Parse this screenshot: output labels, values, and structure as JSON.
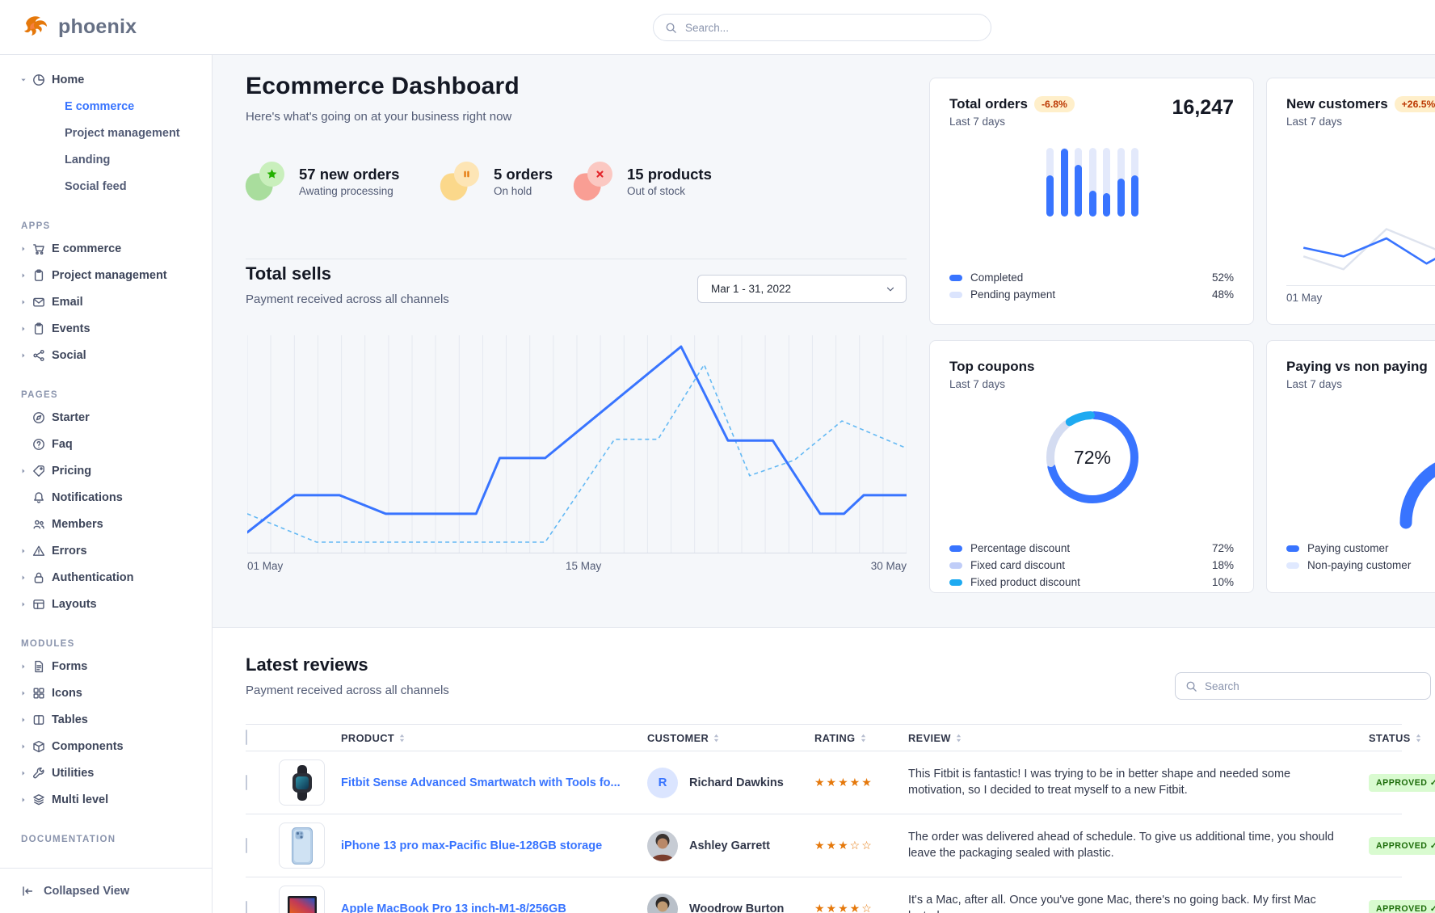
{
  "header": {
    "logo_text": "phoenix",
    "search_placeholder": "Search..."
  },
  "sidebar": {
    "home": {
      "label": "Home",
      "icon": "pie",
      "children": [
        {
          "label": "E commerce",
          "active": true
        },
        {
          "label": "Project management",
          "active": false
        },
        {
          "label": "Landing",
          "active": false
        },
        {
          "label": "Social feed",
          "active": false
        }
      ]
    },
    "groups": [
      {
        "label": "APPS",
        "items": [
          {
            "label": "E commerce",
            "icon": "cart",
            "caret": true
          },
          {
            "label": "Project management",
            "icon": "clipboard",
            "caret": true
          },
          {
            "label": "Email",
            "icon": "envelope",
            "caret": true
          },
          {
            "label": "Events",
            "icon": "clipboard",
            "caret": true
          },
          {
            "label": "Social",
            "icon": "share",
            "caret": true
          }
        ]
      },
      {
        "label": "PAGES",
        "items": [
          {
            "label": "Starter",
            "icon": "compass",
            "caret": false
          },
          {
            "label": "Faq",
            "icon": "question",
            "caret": false
          },
          {
            "label": "Pricing",
            "icon": "tag",
            "caret": true
          },
          {
            "label": "Notifications",
            "icon": "bell",
            "caret": false
          },
          {
            "label": "Members",
            "icon": "users",
            "caret": false
          },
          {
            "label": "Errors",
            "icon": "warning",
            "caret": true
          },
          {
            "label": "Authentication",
            "icon": "lock",
            "caret": true
          },
          {
            "label": "Layouts",
            "icon": "layout",
            "caret": true
          }
        ]
      },
      {
        "label": "MODULES",
        "items": [
          {
            "label": "Forms",
            "icon": "file",
            "caret": true
          },
          {
            "label": "Icons",
            "icon": "grid",
            "caret": true
          },
          {
            "label": "Tables",
            "icon": "tablecols",
            "caret": true
          },
          {
            "label": "Components",
            "icon": "box",
            "caret": true
          },
          {
            "label": "Utilities",
            "icon": "wrench",
            "caret": true
          },
          {
            "label": "Multi level",
            "icon": "layers",
            "caret": true
          }
        ]
      },
      {
        "label": "DOCUMENTATION",
        "items": []
      }
    ],
    "collapsed_view": "Collapsed View"
  },
  "hero": {
    "title": "Ecommerce Dashboard",
    "subtitle": "Here's what's going on at your business right now",
    "stats": [
      {
        "value": "57 new orders",
        "caption": "Awating processing",
        "icon": "star",
        "blob": "#a9dd9d",
        "circle": "#c9efbc",
        "glyph": "#23b000",
        "x": 41
      },
      {
        "value": "5 orders",
        "caption": "On hold",
        "icon": "pause",
        "blob": "#fbd88b",
        "circle": "#fde5b5",
        "glyph": "#e5780b",
        "x": 282
      },
      {
        "value": "15 products",
        "caption": "Out of stock",
        "icon": "x",
        "blob": "#f99e94",
        "circle": "#fbc8c2",
        "glyph": "#e3252b",
        "x": 447
      }
    ]
  },
  "total_sells": {
    "title": "Total sells",
    "subtitle": "Payment received across all channels",
    "date_range": "Mar 1 - 31, 2022",
    "x_labels": [
      "01 May",
      "15 May",
      "30 May"
    ]
  },
  "cards": {
    "total_orders": {
      "title": "Total orders",
      "badge": "-6.8%",
      "period": "Last 7 days",
      "value": "16,247",
      "legend": [
        {
          "label": "Completed",
          "value": "52%",
          "color": "#3874ff"
        },
        {
          "label": "Pending payment",
          "value": "48%",
          "color": "#dbe4fd"
        }
      ]
    },
    "new_customers": {
      "title": "New customers",
      "badge": "+26.5%",
      "period": "Last 7 days",
      "x_label": "01 May"
    },
    "top_coupons": {
      "title": "Top coupons",
      "period": "Last 7 days",
      "center_label": "72%",
      "legend": [
        {
          "label": "Percentage discount",
          "value": "72%",
          "color": "#3874ff"
        },
        {
          "label": "Fixed card discount",
          "value": "18%",
          "color": "#c0cdf8"
        },
        {
          "label": "Fixed product discount",
          "value": "10%",
          "color": "#1eaaf1"
        }
      ]
    },
    "paying": {
      "title": "Paying vs non paying",
      "period": "Last 7 days",
      "legend": [
        {
          "label": "Paying customer",
          "color": "#3874ff"
        },
        {
          "label": "Non-paying customer",
          "color": "#e0e9ff"
        }
      ]
    }
  },
  "reviews": {
    "title": "Latest reviews",
    "subtitle": "Payment received across all channels",
    "search_placeholder": "Search",
    "columns": [
      "PRODUCT",
      "CUSTOMER",
      "RATING",
      "REVIEW",
      "STATUS"
    ],
    "rows": [
      {
        "product": "Fitbit Sense Advanced Smartwatch with Tools fo...",
        "image": "fitbit",
        "customer": "Richard Dawkins",
        "avatar": {
          "type": "initial",
          "text": "R"
        },
        "rating": 5,
        "review": "This Fitbit is fantastic! I was trying to be in better shape and needed some motivation, so I decided to treat myself to a new Fitbit.",
        "status": "APPROVED"
      },
      {
        "product": "iPhone 13 pro max-Pacific Blue-128GB storage",
        "image": "iphone",
        "customer": "Ashley Garrett",
        "avatar": {
          "type": "photo",
          "bg": "#c7ccd4",
          "hair": "#3a3330",
          "face": "#b98868",
          "shirt": "#7a3e2e"
        },
        "rating": 3,
        "review": "The order was delivered ahead of schedule. To give us additional time, you should leave the packaging sealed with plastic.",
        "status": "APPROVED"
      },
      {
        "product": "Apple MacBook Pro 13 inch-M1-8/256GB",
        "image": "macbook",
        "customer": "Woodrow Burton",
        "avatar": {
          "type": "photo",
          "bg": "#b9c0c9",
          "hair": "#2e2a28",
          "face": "#c09a72",
          "shirt": "#4a5568"
        },
        "rating": 4,
        "review": "It's a Mac, after all. Once you've gone Mac, there's no going back. My first Mac lasted",
        "status": "APPROVED"
      }
    ]
  },
  "chart_data": [
    {
      "type": "line",
      "title": "Total sells",
      "x_labels": [
        "01 May",
        "15 May",
        "30 May"
      ],
      "grid": "vertical",
      "y_normalized": true,
      "series": [
        {
          "name": "current",
          "style": "solid",
          "color": "#3874ff",
          "points": [
            [
              0.0,
              0.05
            ],
            [
              0.072,
              0.24
            ],
            [
              0.14,
              0.24
            ],
            [
              0.21,
              0.145
            ],
            [
              0.347,
              0.145
            ],
            [
              0.383,
              0.43
            ],
            [
              0.452,
              0.43
            ],
            [
              0.658,
              1.0
            ],
            [
              0.729,
              0.52
            ],
            [
              0.797,
              0.52
            ],
            [
              0.869,
              0.145
            ],
            [
              0.905,
              0.145
            ],
            [
              0.935,
              0.24
            ],
            [
              1.0,
              0.24
            ]
          ]
        },
        {
          "name": "previous",
          "style": "dashed",
          "color": "#64b9f4",
          "points": [
            [
              0.0,
              0.145
            ],
            [
              0.105,
              0.0
            ],
            [
              0.452,
              0.0
            ],
            [
              0.557,
              0.526
            ],
            [
              0.623,
              0.526
            ],
            [
              0.693,
              0.908
            ],
            [
              0.762,
              0.34
            ],
            [
              0.83,
              0.42
            ],
            [
              0.902,
              0.62
            ],
            [
              1.0,
              0.48
            ]
          ]
        }
      ]
    },
    {
      "type": "bar",
      "title": "Total orders - Last 7 days",
      "value_label": "16,247",
      "values": [
        60,
        99,
        75,
        38,
        34,
        55,
        60
      ],
      "unit": "percent_of_track",
      "legend": {
        "Completed": "52%",
        "Pending payment": "48%"
      }
    },
    {
      "type": "line",
      "title": "New customers",
      "x_labels": [
        "01 May"
      ],
      "y_normalized": true,
      "series": [
        {
          "name": "current",
          "color": "#3874ff",
          "points": [
            [
              0.06,
              0.42
            ],
            [
              0.2,
              0.3
            ],
            [
              0.35,
              0.55
            ],
            [
              0.49,
              0.2
            ],
            [
              0.56,
              0.35
            ],
            [
              0.7,
              0.6
            ],
            [
              0.85,
              0.45
            ],
            [
              1.0,
              0.65
            ]
          ]
        },
        {
          "name": "previous",
          "color": "#dee3ee",
          "points": [
            [
              0.06,
              0.3
            ],
            [
              0.2,
              0.12
            ],
            [
              0.35,
              0.68
            ],
            [
              0.52,
              0.4
            ],
            [
              0.7,
              0.5
            ],
            [
              1.0,
              0.55
            ]
          ]
        }
      ]
    },
    {
      "type": "pie",
      "title": "Top coupons",
      "center_label": "72%",
      "slices": [
        {
          "label": "Percentage discount",
          "value": 72,
          "color": "#3874ff"
        },
        {
          "label": "Fixed card discount",
          "value": 18,
          "color": "#d4dcf1"
        },
        {
          "label": "Fixed product discount",
          "value": 10,
          "color": "#1eaaf1"
        }
      ]
    },
    {
      "type": "gauge",
      "title": "Paying vs non paying",
      "paying_fraction": 0.36
    }
  ]
}
